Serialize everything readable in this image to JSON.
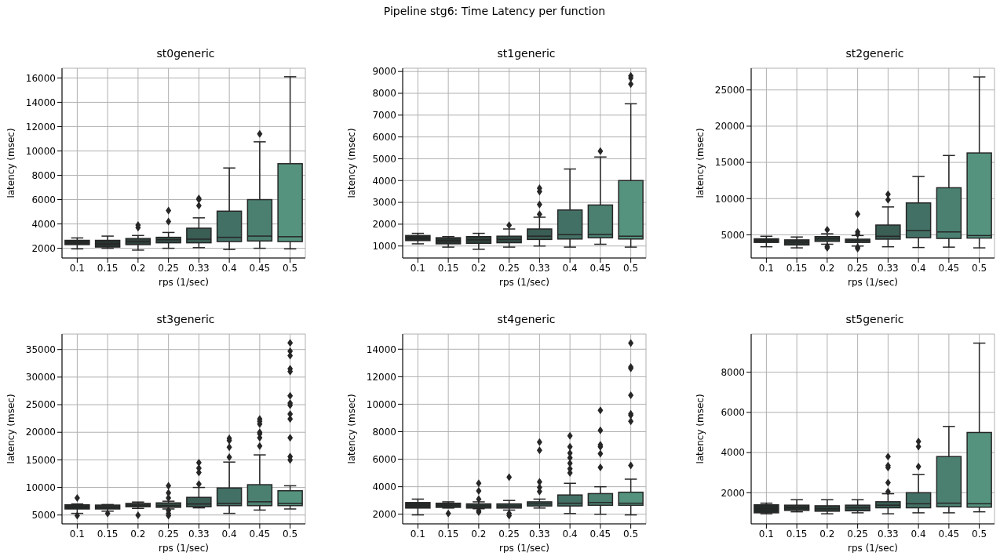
{
  "chart_data": [
    {
      "type": "box",
      "title": "st0generic",
      "annotations": [
        "Pipeline stg6: Time Latency per function"
      ],
      "xlabel": "rps (1/sec)",
      "ylabel": "latency (msec)",
      "categories": [
        "0.1",
        "0.15",
        "0.2",
        "0.25",
        "0.33",
        "0.4",
        "0.45",
        "0.5"
      ],
      "colors": [
        "#232a28",
        "#29332f",
        "#2e3f3a",
        "#334b45",
        "#3a5d54",
        "#437065",
        "#4b8071",
        "#55937f"
      ],
      "ylim": [
        1200,
        16800
      ],
      "yticks": [
        2000,
        4000,
        6000,
        8000,
        10000,
        12000,
        14000,
        16000
      ],
      "grid": true,
      "boxes": [
        {
          "low": 1950,
          "q1": 2300,
          "median": 2450,
          "q3": 2650,
          "high": 2850
        },
        {
          "low": 2000,
          "q1": 2100,
          "median": 2350,
          "q3": 2650,
          "high": 3000
        },
        {
          "low": 1850,
          "q1": 2300,
          "median": 2550,
          "q3": 2800,
          "high": 3050,
          "outliers": [
            3700,
            3900
          ]
        },
        {
          "low": 2000,
          "q1": 2450,
          "median": 2700,
          "q3": 2900,
          "high": 3300,
          "outliers": [
            4200,
            5100
          ]
        },
        {
          "low": 2050,
          "q1": 2450,
          "median": 2750,
          "q3": 3650,
          "high": 4500,
          "outliers": [
            5500,
            6000,
            6100
          ]
        },
        {
          "low": 1900,
          "q1": 2550,
          "median": 2900,
          "q3": 5050,
          "high": 8600
        },
        {
          "low": 2000,
          "q1": 2600,
          "median": 3000,
          "q3": 6000,
          "high": 10750,
          "outliers": [
            11400
          ]
        },
        {
          "low": 1950,
          "q1": 2550,
          "median": 2950,
          "q3": 8950,
          "high": 16100
        }
      ]
    },
    {
      "type": "box",
      "title": "st1generic",
      "xlabel": "rps (1/sec)",
      "ylabel": "latency (msec)",
      "categories": [
        "0.1",
        "0.15",
        "0.2",
        "0.25",
        "0.33",
        "0.4",
        "0.45",
        "0.5"
      ],
      "colors": [
        "#232a28",
        "#29332f",
        "#2e3f3a",
        "#334b45",
        "#3a5d54",
        "#437065",
        "#4b8071",
        "#55937f"
      ],
      "ylim": [
        450,
        9150
      ],
      "yticks": [
        1000,
        2000,
        3000,
        4000,
        5000,
        6000,
        7000,
        8000,
        9000
      ],
      "grid": true,
      "boxes": [
        {
          "low": 1100,
          "q1": 1250,
          "median": 1350,
          "q3": 1480,
          "high": 1580
        },
        {
          "low": 950,
          "q1": 1100,
          "median": 1250,
          "q3": 1380,
          "high": 1430
        },
        {
          "low": 850,
          "q1": 1120,
          "median": 1280,
          "q3": 1430,
          "high": 1580
        },
        {
          "low": 950,
          "q1": 1150,
          "median": 1300,
          "q3": 1450,
          "high": 1780,
          "outliers": [
            1950
          ]
        },
        {
          "low": 1000,
          "q1": 1300,
          "median": 1450,
          "q3": 1780,
          "high": 2320,
          "outliers": [
            2450,
            2900,
            3500,
            3650
          ]
        },
        {
          "low": 950,
          "q1": 1320,
          "median": 1520,
          "q3": 2650,
          "high": 4530
        },
        {
          "low": 1080,
          "q1": 1380,
          "median": 1530,
          "q3": 2880,
          "high": 5080,
          "outliers": [
            5350
          ]
        },
        {
          "low": 950,
          "q1": 1320,
          "median": 1450,
          "q3": 4000,
          "high": 7520,
          "outliers": [
            8420,
            8700,
            8800
          ]
        }
      ]
    },
    {
      "type": "box",
      "title": "st2generic",
      "xlabel": "rps (1/sec)",
      "ylabel": "latency (msec)",
      "categories": [
        "0.1",
        "0.15",
        "0.2",
        "0.25",
        "0.33",
        "0.4",
        "0.45",
        "0.5"
      ],
      "colors": [
        "#232a28",
        "#29332f",
        "#2e3f3a",
        "#334b45",
        "#3a5d54",
        "#437065",
        "#4b8071",
        "#55937f"
      ],
      "ylim": [
        1800,
        28000
      ],
      "yticks": [
        5000,
        10000,
        15000,
        20000,
        25000
      ],
      "grid": true,
      "boxes": [
        {
          "low": 3350,
          "q1": 3950,
          "median": 4200,
          "q3": 4450,
          "high": 4800
        },
        {
          "low": 3200,
          "q1": 3600,
          "median": 4000,
          "q3": 4300,
          "high": 4700
        },
        {
          "low": 3700,
          "q1": 4100,
          "median": 4450,
          "q3": 4750,
          "high": 5150,
          "outliers": [
            3200,
            3400,
            5700
          ]
        },
        {
          "low": 3450,
          "q1": 3950,
          "median": 4200,
          "q3": 4400,
          "high": 4900,
          "outliers": [
            3100,
            3300,
            5100,
            5400,
            7850
          ]
        },
        {
          "low": 3350,
          "q1": 4400,
          "median": 4800,
          "q3": 6350,
          "high": 8850,
          "outliers": [
            9850,
            10600
          ]
        },
        {
          "low": 3250,
          "q1": 4600,
          "median": 5600,
          "q3": 9400,
          "high": 13050
        },
        {
          "low": 3300,
          "q1": 4500,
          "median": 5400,
          "q3": 11500,
          "high": 15950
        },
        {
          "low": 3200,
          "q1": 4550,
          "median": 4900,
          "q3": 16300,
          "high": 26800
        }
      ]
    },
    {
      "type": "box",
      "title": "st3generic",
      "xlabel": "rps (1/sec)",
      "ylabel": "latency (msec)",
      "categories": [
        "0.1",
        "0.15",
        "0.2",
        "0.25",
        "0.33",
        "0.4",
        "0.45",
        "0.5"
      ],
      "colors": [
        "#232a28",
        "#29332f",
        "#2e3f3a",
        "#334b45",
        "#3a5d54",
        "#437065",
        "#4b8071",
        "#55937f"
      ],
      "ylim": [
        3400,
        37800
      ],
      "yticks": [
        5000,
        10000,
        15000,
        20000,
        25000,
        30000,
        35000
      ],
      "grid": true,
      "boxes": [
        {
          "low": 5300,
          "q1": 6100,
          "median": 6450,
          "q3": 6850,
          "high": 7000,
          "outliers": [
            4900,
            8100
          ]
        },
        {
          "low": 5700,
          "q1": 6100,
          "median": 6400,
          "q3": 6800,
          "high": 6900,
          "outliers": [
            5300
          ]
        },
        {
          "low": 6200,
          "q1": 6500,
          "median": 6800,
          "q3": 7100,
          "high": 7350,
          "outliers": [
            4950
          ]
        },
        {
          "low": 6100,
          "q1": 6400,
          "median": 6700,
          "q3": 7200,
          "high": 7500,
          "outliers": [
            4900,
            5300,
            5800,
            8100,
            9000,
            10300
          ]
        },
        {
          "low": 6300,
          "q1": 6500,
          "median": 7000,
          "q3": 8200,
          "high": 10000,
          "outliers": [
            10600,
            12700,
            13500,
            14500
          ]
        },
        {
          "low": 5300,
          "q1": 6700,
          "median": 7100,
          "q3": 9900,
          "high": 14600,
          "outliers": [
            15500,
            17300,
            18500,
            18900
          ]
        },
        {
          "low": 5900,
          "q1": 6700,
          "median": 7400,
          "q3": 10500,
          "high": 15900,
          "outliers": [
            17500,
            19000,
            19700,
            20000,
            21500,
            22000,
            22400
          ]
        },
        {
          "low": 6100,
          "q1": 6700,
          "median": 7100,
          "q3": 9400,
          "high": 10300,
          "outliers": [
            15000,
            15600,
            19000,
            22400,
            23300,
            24900,
            25300,
            26600,
            31000,
            31500,
            33900,
            34700,
            36200
          ]
        }
      ]
    },
    {
      "type": "box",
      "title": "st4generic",
      "xlabel": "rps (1/sec)",
      "ylabel": "latency (msec)",
      "categories": [
        "0.1",
        "0.15",
        "0.2",
        "0.25",
        "0.33",
        "0.4",
        "0.45",
        "0.5"
      ],
      "colors": [
        "#232a28",
        "#29332f",
        "#2e3f3a",
        "#334b45",
        "#3a5d54",
        "#437065",
        "#4b8071",
        "#55937f"
      ],
      "ylim": [
        1300,
        15100
      ],
      "yticks": [
        2000,
        4000,
        6000,
        8000,
        10000,
        12000,
        14000
      ],
      "grid": true,
      "boxes": [
        {
          "low": 1950,
          "q1": 2450,
          "median": 2650,
          "q3": 2850,
          "high": 3100
        },
        {
          "low": 2450,
          "q1": 2500,
          "median": 2650,
          "q3": 2800,
          "high": 2900,
          "outliers": [
            2050
          ]
        },
        {
          "low": 2400,
          "q1": 2450,
          "median": 2600,
          "q3": 2750,
          "high": 2900,
          "outliers": [
            2150,
            2250,
            3100,
            3700,
            4250
          ]
        },
        {
          "low": 2300,
          "q1": 2450,
          "median": 2600,
          "q3": 2750,
          "high": 3000,
          "outliers": [
            1900,
            2050,
            4700
          ]
        },
        {
          "low": 2450,
          "q1": 2600,
          "median": 2750,
          "q3": 2900,
          "high": 3100,
          "outliers": [
            3650,
            3950,
            4350,
            6650,
            7250
          ]
        },
        {
          "low": 2050,
          "q1": 2600,
          "median": 2800,
          "q3": 3400,
          "high": 4250,
          "outliers": [
            5000,
            5300,
            5700,
            6100,
            6450,
            6900,
            7700
          ]
        },
        {
          "low": 2000,
          "q1": 2650,
          "median": 2850,
          "q3": 3500,
          "high": 4000,
          "outliers": [
            5400,
            6400,
            6900,
            7050,
            8100,
            9550
          ]
        },
        {
          "low": 1950,
          "q1": 2650,
          "median": 2800,
          "q3": 3600,
          "high": 4550,
          "outliers": [
            5550,
            8750,
            9200,
            9300,
            10650,
            12600,
            12700,
            14450
          ]
        }
      ]
    },
    {
      "type": "box",
      "title": "st5generic",
      "xlabel": "rps (1/sec)",
      "ylabel": "latency (msec)",
      "categories": [
        "0.1",
        "0.15",
        "0.2",
        "0.25",
        "0.33",
        "0.4",
        "0.45",
        "0.5"
      ],
      "colors": [
        "#232a28",
        "#29332f",
        "#2e3f3a",
        "#334b45",
        "#3a5d54",
        "#437065",
        "#4b8071",
        "#55937f"
      ],
      "ylim": [
        450,
        9900
      ],
      "yticks": [
        2000,
        4000,
        6000,
        8000
      ],
      "grid": true,
      "boxes": [
        {
          "low": 950,
          "q1": 1000,
          "median": 1200,
          "q3": 1400,
          "high": 1480
        },
        {
          "low": 1050,
          "q1": 1120,
          "median": 1250,
          "q3": 1380,
          "high": 1650
        },
        {
          "low": 950,
          "q1": 1080,
          "median": 1200,
          "q3": 1350,
          "high": 1650
        },
        {
          "low": 1000,
          "q1": 1100,
          "median": 1250,
          "q3": 1380,
          "high": 1650
        },
        {
          "low": 950,
          "q1": 1250,
          "median": 1380,
          "q3": 1550,
          "high": 1950,
          "outliers": [
            2050,
            2500,
            3250,
            3350,
            3800
          ]
        },
        {
          "low": 1000,
          "q1": 1250,
          "median": 1450,
          "q3": 2000,
          "high": 2900,
          "outliers": [
            3300,
            4300,
            4550
          ]
        },
        {
          "low": 1000,
          "q1": 1300,
          "median": 1480,
          "q3": 3800,
          "high": 5300
        },
        {
          "low": 1050,
          "q1": 1280,
          "median": 1450,
          "q3": 5000,
          "high": 9450
        }
      ]
    }
  ]
}
